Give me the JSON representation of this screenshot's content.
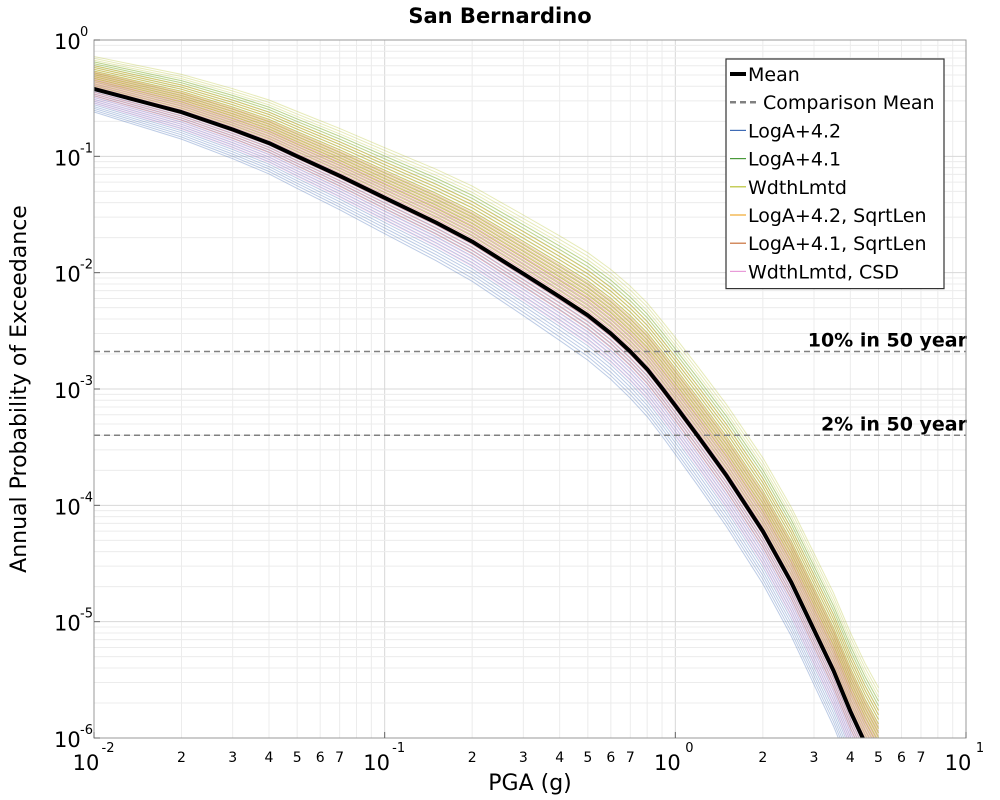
{
  "chart_data": {
    "type": "line",
    "title": "San Bernardino",
    "xlabel": "PGA (g)",
    "ylabel": "Annual Probability of Exceedance",
    "x_scale": "log",
    "y_scale": "log",
    "xlim": [
      0.01,
      10
    ],
    "ylim": [
      1e-06,
      1
    ],
    "grid": true,
    "legend_position": "top-right",
    "x_major_ticks": [
      {
        "base": "10",
        "exp": "-2"
      },
      {
        "base": "10",
        "exp": "-1"
      },
      {
        "base": "10",
        "exp": "0"
      },
      {
        "base": "10",
        "exp": "1"
      }
    ],
    "y_major_ticks": [
      {
        "base": "10",
        "exp": "0"
      },
      {
        "base": "10",
        "exp": "-1"
      },
      {
        "base": "10",
        "exp": "-2"
      },
      {
        "base": "10",
        "exp": "-3"
      },
      {
        "base": "10",
        "exp": "-4"
      },
      {
        "base": "10",
        "exp": "-5"
      },
      {
        "base": "10",
        "exp": "-6"
      }
    ],
    "x_minor_tick_labels": [
      "2",
      "3",
      "4",
      "5",
      "6",
      "7"
    ],
    "mean": {
      "name": "Mean",
      "color": "#000000",
      "x": [
        0.01,
        0.015,
        0.02,
        0.03,
        0.04,
        0.05,
        0.07,
        0.1,
        0.15,
        0.2,
        0.3,
        0.4,
        0.5,
        0.6,
        0.7,
        0.8,
        0.9,
        1.0,
        1.2,
        1.5,
        2.0,
        2.5,
        3.0,
        3.5,
        4.0,
        4.5,
        5.0
      ],
      "y": [
        0.38,
        0.29,
        0.24,
        0.17,
        0.13,
        0.1,
        0.068,
        0.044,
        0.027,
        0.0185,
        0.0098,
        0.0062,
        0.0043,
        0.003,
        0.0021,
        0.00148,
        0.00102,
        0.00072,
        0.00039,
        0.00018,
        6e-05,
        2.2e-05,
        8.5e-06,
        3.8e-06,
        1.7e-06,
        9e-07,
        5.5e-07
      ]
    },
    "hazard_lines": [
      {
        "label": "10% in 50 year",
        "y": 0.0021,
        "color": "#808080"
      },
      {
        "label": "2% in 50 year",
        "y": 0.0004,
        "color": "#808080"
      }
    ],
    "series": [
      {
        "name": "LogA+4.2",
        "color": "#3f6bb5",
        "factor": 0.8
      },
      {
        "name": "LogA+4.1",
        "color": "#4a9a3a",
        "factor": 1.35
      },
      {
        "name": "WdthLmtd",
        "color": "#b7c234",
        "factor": 1.5
      },
      {
        "name": "LogA+4.2, SqrtLen",
        "color": "#f0a830",
        "factor": 1.25
      },
      {
        "name": "LogA+4.1, SqrtLen",
        "color": "#c8703a",
        "factor": 1.1
      },
      {
        "name": "WdthLmtd, CSD",
        "color": "#e89bd8",
        "factor": 0.95
      }
    ],
    "legend": [
      {
        "label": "Mean",
        "style": "thick",
        "color": "#000000"
      },
      {
        "label": "Comparison Mean",
        "style": "dashed",
        "color": "#808080"
      },
      {
        "label": "LogA+4.2",
        "style": "thin",
        "color": "#3f6bb5"
      },
      {
        "label": "LogA+4.1",
        "style": "thin",
        "color": "#4a9a3a"
      },
      {
        "label": "WdthLmtd",
        "style": "thin",
        "color": "#b7c234"
      },
      {
        "label": "LogA+4.2, SqrtLen",
        "style": "thin",
        "color": "#f0a830"
      },
      {
        "label": "LogA+4.1, SqrtLen",
        "style": "thin",
        "color": "#c8703a"
      },
      {
        "label": "WdthLmtd, CSD",
        "style": "thin",
        "color": "#e89bd8"
      }
    ]
  }
}
